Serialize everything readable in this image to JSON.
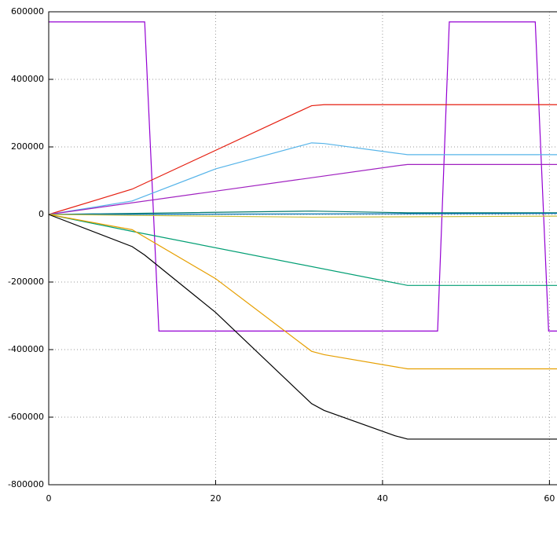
{
  "chart_data": {
    "type": "line",
    "xlim": [
      0,
      61
    ],
    "xticks": [
      0,
      20,
      40,
      60
    ],
    "ylim": [
      -800000,
      600000
    ],
    "yticks": [
      -800000,
      -600000,
      -400000,
      -200000,
      0,
      200000,
      400000,
      600000
    ],
    "grid": true,
    "series": [
      {
        "color": "#9400d3",
        "x": [
          0,
          11.5,
          13.2,
          46.6,
          48,
          58.3,
          59.9,
          61
        ],
        "values": [
          570000,
          570000,
          -345000,
          -345000,
          570000,
          570000,
          -345000,
          -345000
        ]
      },
      {
        "color": "#e51e10",
        "x": [
          0,
          10,
          31.5,
          33,
          61
        ],
        "values": [
          0,
          75000,
          322000,
          325000,
          325000
        ]
      },
      {
        "color": "#56b4e9",
        "x": [
          0,
          10,
          20,
          31.5,
          33,
          43,
          61
        ],
        "values": [
          0,
          40000,
          135000,
          212000,
          210000,
          177000,
          177000
        ]
      },
      {
        "color": "#a020c0",
        "x": [
          0,
          42,
          43,
          61
        ],
        "values": [
          0,
          145000,
          148000,
          148000
        ]
      },
      {
        "color": "#00796b",
        "x": [
          0,
          31.5,
          43,
          61
        ],
        "values": [
          0,
          10000,
          5000,
          5000
        ]
      },
      {
        "color": "#0072b2",
        "x": [
          0,
          61
        ],
        "values": [
          0,
          3000
        ]
      },
      {
        "color": "#c8c040",
        "x": [
          0,
          31.5,
          61
        ],
        "values": [
          0,
          -8000,
          -5000
        ]
      },
      {
        "color": "#009e73",
        "x": [
          0,
          10,
          43,
          61
        ],
        "values": [
          0,
          -50000,
          -210000,
          -210000
        ]
      },
      {
        "color": "#e69f00",
        "x": [
          0,
          10,
          20,
          31.5,
          33,
          43,
          61
        ],
        "values": [
          0,
          -45000,
          -190000,
          -405000,
          -415000,
          -457000,
          -457000
        ]
      },
      {
        "color": "#000000",
        "x": [
          0,
          10,
          11.5,
          20,
          31.5,
          33,
          41.5,
          43,
          61
        ],
        "values": [
          0,
          -95000,
          -120000,
          -290000,
          -560000,
          -580000,
          -655000,
          -665000,
          -665000
        ]
      }
    ]
  }
}
